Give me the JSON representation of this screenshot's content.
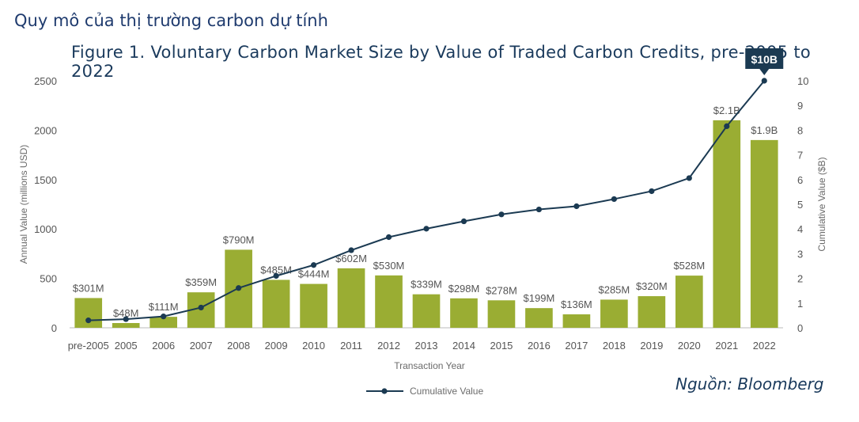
{
  "heading": "Quy mô của thị trường carbon dự tính",
  "source": "Nguồn: Bloomberg",
  "colors": {
    "bar": "#9aad33",
    "line": "#1b3a52",
    "callout": "#1b3a52"
  },
  "chart_data": {
    "type": "bar",
    "title": "Figure 1. Voluntary Carbon Market Size by Value of Traded Carbon Credits, pre-2005 to 2022",
    "xlabel": "Transaction Year",
    "ylabel": "Annual Value (millions USD)",
    "y2label": "Cumulative Value ($B)",
    "ylim": [
      0,
      2500
    ],
    "y2lim": [
      0,
      10
    ],
    "yticks": [
      0,
      500,
      1000,
      1500,
      2000,
      2500
    ],
    "y2ticks": [
      0,
      1,
      2,
      3,
      4,
      5,
      6,
      7,
      8,
      9,
      10
    ],
    "categories": [
      "pre-2005",
      "2005",
      "2006",
      "2007",
      "2008",
      "2009",
      "2010",
      "2011",
      "2012",
      "2013",
      "2014",
      "2015",
      "2016",
      "2017",
      "2018",
      "2019",
      "2020",
      "2021",
      "2022"
    ],
    "series": [
      {
        "name": "Annual Value",
        "kind": "bar",
        "values": [
          301,
          48,
          111,
          359,
          790,
          485,
          444,
          602,
          530,
          339,
          298,
          278,
          199,
          136,
          285,
          320,
          528,
          2100,
          1900
        ],
        "labels": [
          "$301M",
          "$48M",
          "$111M",
          "$359M",
          "$790M",
          "$485M",
          "$444M",
          "$602M",
          "$530M",
          "$339M",
          "$298M",
          "$278M",
          "$199M",
          "$136M",
          "$285M",
          "$320M",
          "$528M",
          "$2.1B",
          "$1.9B"
        ]
      },
      {
        "name": "Cumulative Value",
        "kind": "line",
        "values": [
          0.3,
          0.35,
          0.46,
          0.82,
          1.61,
          2.1,
          2.54,
          3.14,
          3.67,
          4.01,
          4.31,
          4.59,
          4.79,
          4.92,
          5.21,
          5.53,
          6.06,
          8.16,
          10.0
        ]
      }
    ],
    "callout": "$10B",
    "legend": "Cumulative Value",
    "legend_position": "bottom-center"
  }
}
